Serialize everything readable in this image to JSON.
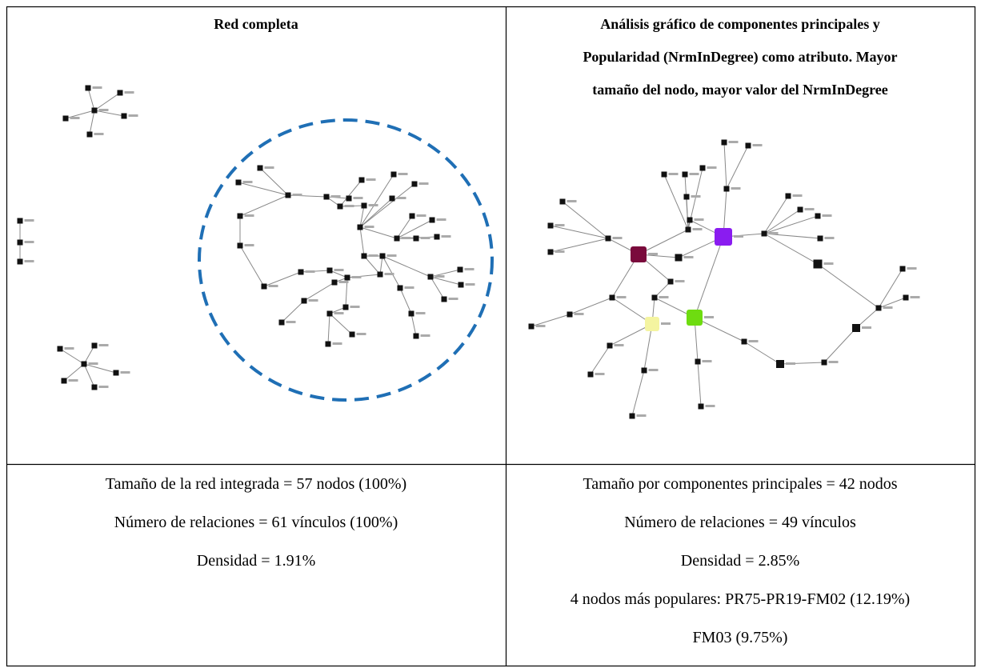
{
  "table": {
    "left": {
      "title": "Red completa",
      "lines": [
        "Tamaño de la red integrada = 57 nodos (100%)",
        "Número de relaciones = 61 vínculos (100%)",
        "Densidad = 1.91%"
      ]
    },
    "right": {
      "title_lines": [
        "Análisis gráfico de componentes principales y",
        "Popularidad (NrmInDegree) como atributo. Mayor",
        "tamaño del nodo, mayor valor del NrmInDegree"
      ],
      "lines": [
        "Tamaño por componentes principales = 42 nodos",
        "Número de relaciones = 49 vínculos",
        "Densidad = 2.85%",
        "4 nodos más populares: PR75-PR19-FM02 (12.19%)",
        "FM03 (9.75%)"
      ]
    }
  }
}
